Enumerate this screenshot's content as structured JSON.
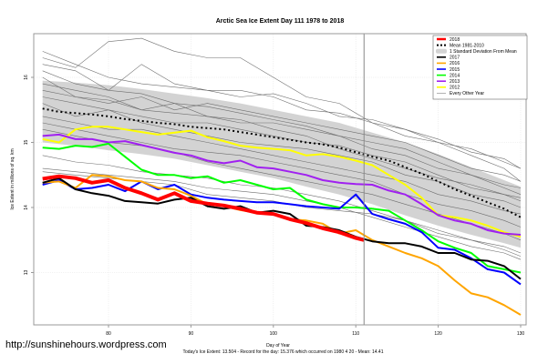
{
  "chart_data": {
    "type": "line",
    "title": "Arctic Sea Ice Extent Day 111 1978 to 2018",
    "xlabel": "Day of Year",
    "ylabel": "Ice Extent in millions of sq. km",
    "xlim": [
      71,
      131.5
    ],
    "ylim": [
      12.2,
      16.7
    ],
    "x_ticks": [
      80,
      90,
      100,
      110,
      120,
      130
    ],
    "y_ticks": [
      13,
      14,
      15,
      16
    ],
    "grid": true,
    "current_day_marker": 111,
    "legend_position": "top-right",
    "legend": [
      {
        "label": "2018",
        "color": "#ff0000",
        "style": "thick"
      },
      {
        "label": "Mean 1981-2010",
        "color": "#000000",
        "style": "dotted"
      },
      {
        "label": "1 Standard Deviation From Mean",
        "color": "#d3d3d3",
        "style": "band"
      },
      {
        "label": "2017",
        "color": "#000000",
        "style": "solid"
      },
      {
        "label": "2016",
        "color": "#ffa500",
        "style": "solid"
      },
      {
        "label": "2015",
        "color": "#0000ff",
        "style": "solid"
      },
      {
        "label": "2014",
        "color": "#00ff00",
        "style": "solid"
      },
      {
        "label": "2013",
        "color": "#a020f0",
        "style": "solid"
      },
      {
        "label": "2012",
        "color": "#ffff00",
        "style": "solid"
      },
      {
        "label": "Every Other Year",
        "color": "#808080",
        "style": "thin"
      }
    ],
    "band": {
      "name": "1 Standard Deviation From Mean",
      "x": [
        72,
        76,
        80,
        84,
        88,
        92,
        96,
        100,
        104,
        108,
        112,
        116,
        120,
        124,
        128,
        130
      ],
      "upper": [
        15.95,
        15.92,
        15.88,
        15.82,
        15.75,
        15.68,
        15.6,
        15.5,
        15.4,
        15.3,
        15.15,
        15.0,
        14.82,
        14.62,
        14.42,
        14.32
      ],
      "lower": [
        15.0,
        14.95,
        14.88,
        14.82,
        14.75,
        14.65,
        14.55,
        14.45,
        14.32,
        14.2,
        14.05,
        13.88,
        13.72,
        13.58,
        13.45,
        13.38
      ]
    },
    "mean": {
      "name": "Mean 1981-2010",
      "x": [
        72,
        74,
        76,
        78,
        80,
        82,
        84,
        86,
        88,
        90,
        92,
        94,
        96,
        98,
        100,
        102,
        104,
        106,
        108,
        110,
        112,
        114,
        116,
        118,
        120,
        122,
        124,
        126,
        128,
        130
      ],
      "values": [
        15.52,
        15.47,
        15.45,
        15.43,
        15.4,
        15.36,
        15.33,
        15.3,
        15.28,
        15.24,
        15.22,
        15.2,
        15.16,
        15.12,
        15.08,
        15.04,
        15.0,
        14.97,
        14.92,
        14.85,
        14.78,
        14.72,
        14.62,
        14.52,
        14.4,
        14.28,
        14.18,
        14.08,
        13.98,
        13.85
      ]
    },
    "series": [
      {
        "name": "2018",
        "color": "#ff0000",
        "x": [
          72,
          74,
          76,
          78,
          80,
          82,
          84,
          86,
          88,
          90,
          92,
          94,
          96,
          98,
          100,
          102,
          104,
          106,
          108,
          110,
          111
        ],
        "values": [
          14.44,
          14.48,
          14.45,
          14.38,
          14.42,
          14.3,
          14.22,
          14.12,
          14.22,
          14.1,
          14.06,
          14.03,
          13.98,
          13.92,
          13.9,
          13.82,
          13.76,
          13.68,
          13.62,
          13.53,
          13.5
        ]
      },
      {
        "name": "2017",
        "color": "#000000",
        "x": [
          72,
          74,
          76,
          78,
          80,
          82,
          84,
          86,
          88,
          90,
          92,
          94,
          96,
          98,
          100,
          102,
          104,
          106,
          108,
          110,
          112,
          114,
          116,
          118,
          120,
          122,
          124,
          126,
          128,
          130
        ],
        "values": [
          14.38,
          14.45,
          14.28,
          14.22,
          14.18,
          14.1,
          14.08,
          14.06,
          14.12,
          14.15,
          14.02,
          13.98,
          14.02,
          13.92,
          13.95,
          13.9,
          13.72,
          13.7,
          13.65,
          13.55,
          13.48,
          13.45,
          13.45,
          13.4,
          13.3,
          13.3,
          13.2,
          13.18,
          13.1,
          12.9
        ]
      },
      {
        "name": "2016",
        "color": "#ffa500",
        "x": [
          72,
          74,
          76,
          78,
          80,
          82,
          84,
          86,
          88,
          90,
          92,
          94,
          96,
          98,
          100,
          102,
          104,
          106,
          108,
          110,
          112,
          114,
          116,
          118,
          120,
          122,
          124,
          126,
          128,
          130
        ],
        "values": [
          14.38,
          14.4,
          14.3,
          14.5,
          14.48,
          14.42,
          14.4,
          14.3,
          14.28,
          14.18,
          14.05,
          14.02,
          13.96,
          13.92,
          13.9,
          13.82,
          13.8,
          13.75,
          13.6,
          13.65,
          13.5,
          13.4,
          13.3,
          13.22,
          13.1,
          12.88,
          12.68,
          12.62,
          12.5,
          12.35
        ]
      },
      {
        "name": "2015",
        "color": "#0000ff",
        "x": [
          72,
          74,
          76,
          78,
          80,
          82,
          84,
          86,
          88,
          90,
          92,
          94,
          96,
          98,
          100,
          102,
          104,
          106,
          108,
          110,
          112,
          114,
          116,
          118,
          120,
          122,
          124,
          126,
          128,
          130
        ],
        "values": [
          14.35,
          14.42,
          14.28,
          14.3,
          14.35,
          14.25,
          14.4,
          14.28,
          14.35,
          14.2,
          14.15,
          14.12,
          14.1,
          14.08,
          14.08,
          14.05,
          14.02,
          14.0,
          13.98,
          14.2,
          13.9,
          13.82,
          13.75,
          13.62,
          13.38,
          13.35,
          13.22,
          13.05,
          13.0,
          12.82
        ]
      },
      {
        "name": "2014",
        "color": "#00ff00",
        "x": [
          72,
          74,
          76,
          78,
          80,
          82,
          84,
          86,
          88,
          90,
          92,
          94,
          96,
          98,
          100,
          102,
          104,
          106,
          108,
          110,
          112,
          114,
          116,
          118,
          120,
          122,
          124,
          126,
          128,
          130
        ],
        "values": [
          14.92,
          14.9,
          14.95,
          14.93,
          14.98,
          14.78,
          14.58,
          14.5,
          14.5,
          14.45,
          14.48,
          14.38,
          14.42,
          14.35,
          14.28,
          14.3,
          14.12,
          14.05,
          14.0,
          14.0,
          13.98,
          13.95,
          13.8,
          13.65,
          13.48,
          13.38,
          13.3,
          13.1,
          13.05,
          13.0
        ]
      },
      {
        "name": "2013",
        "color": "#a020f0",
        "x": [
          72,
          74,
          76,
          78,
          80,
          82,
          84,
          86,
          88,
          90,
          92,
          94,
          96,
          98,
          100,
          102,
          104,
          106,
          108,
          110,
          112,
          114,
          116,
          118,
          120,
          122,
          124,
          126,
          128,
          130
        ],
        "values": [
          15.1,
          15.12,
          15.05,
          15.05,
          15.0,
          15.02,
          14.96,
          14.9,
          14.84,
          14.8,
          14.72,
          14.68,
          14.72,
          14.62,
          14.6,
          14.55,
          14.5,
          14.42,
          14.38,
          14.36,
          14.35,
          14.26,
          14.2,
          14.05,
          13.88,
          13.8,
          13.75,
          13.65,
          13.6,
          13.58
        ]
      },
      {
        "name": "2012",
        "color": "#ffff00",
        "x": [
          72,
          74,
          76,
          78,
          80,
          82,
          84,
          86,
          88,
          90,
          92,
          94,
          96,
          98,
          100,
          102,
          104,
          106,
          108,
          110,
          112,
          114,
          116,
          118,
          120,
          122,
          124,
          126,
          128,
          130
        ],
        "values": [
          15.05,
          15.0,
          15.2,
          15.24,
          15.24,
          15.2,
          15.16,
          15.12,
          15.15,
          15.18,
          15.08,
          15.02,
          14.95,
          14.92,
          14.9,
          14.88,
          14.8,
          14.82,
          14.78,
          14.72,
          14.65,
          14.5,
          14.35,
          14.15,
          13.88,
          13.85,
          13.8,
          13.72,
          13.62,
          13.55
        ]
      }
    ],
    "other_years": {
      "name": "Every Other Year",
      "color": "#808080",
      "x": [
        72,
        76,
        80,
        84,
        88,
        92,
        96,
        100,
        104,
        108,
        112,
        116,
        120,
        124,
        128,
        130
      ],
      "lines": [
        [
          16.3,
          16.15,
          16.55,
          16.6,
          16.4,
          16.3,
          16.3,
          16.0,
          15.7,
          15.6,
          15.3,
          15.1,
          15.0,
          14.8,
          14.6,
          14.4
        ],
        [
          16.4,
          16.2,
          16.0,
          15.9,
          15.85,
          15.8,
          15.8,
          15.7,
          15.5,
          15.45,
          15.3,
          15.2,
          15.0,
          14.9,
          14.7,
          14.6
        ],
        [
          16.2,
          16.1,
          15.8,
          16.2,
          15.9,
          15.8,
          15.7,
          15.75,
          15.6,
          15.4,
          15.35,
          15.2,
          15.05,
          14.85,
          14.75,
          14.6
        ],
        [
          16.0,
          15.7,
          15.6,
          15.7,
          15.5,
          15.6,
          15.5,
          15.4,
          15.3,
          15.2,
          15.1,
          15.0,
          14.8,
          14.6,
          14.5,
          14.4
        ],
        [
          15.9,
          15.8,
          15.7,
          15.5,
          15.6,
          15.4,
          15.3,
          15.3,
          15.2,
          15.1,
          14.9,
          14.8,
          14.6,
          14.5,
          14.3,
          14.2
        ],
        [
          15.7,
          15.6,
          15.5,
          15.4,
          15.3,
          15.3,
          15.2,
          15.1,
          15.0,
          14.95,
          14.8,
          14.7,
          14.5,
          14.3,
          14.2,
          14.1
        ],
        [
          15.6,
          15.4,
          15.5,
          15.3,
          15.2,
          15.1,
          15.0,
          14.95,
          14.9,
          14.8,
          14.7,
          14.5,
          14.4,
          14.2,
          14.1,
          14.0
        ],
        [
          15.4,
          15.3,
          15.2,
          15.2,
          15.1,
          15.0,
          14.9,
          14.8,
          14.7,
          14.6,
          14.5,
          14.4,
          14.2,
          14.1,
          13.95,
          13.9
        ],
        [
          15.3,
          15.2,
          15.1,
          15.0,
          14.9,
          14.85,
          14.8,
          14.7,
          14.6,
          14.5,
          14.4,
          14.2,
          14.05,
          13.95,
          13.8,
          13.7
        ],
        [
          15.8,
          15.7,
          15.65,
          15.5,
          15.45,
          15.4,
          15.35,
          15.2,
          15.1,
          14.9,
          14.75,
          14.6,
          14.45,
          14.35,
          14.2,
          14.15
        ],
        [
          16.1,
          15.9,
          15.8,
          15.75,
          15.6,
          15.55,
          15.45,
          15.35,
          15.25,
          15.1,
          15.0,
          14.9,
          14.7,
          14.5,
          14.35,
          14.3
        ],
        [
          14.55,
          14.5,
          14.45,
          14.4,
          14.35,
          14.2,
          14.15,
          14.1,
          14.0,
          13.95,
          13.9,
          13.8,
          13.6,
          13.5,
          13.4,
          13.3
        ],
        [
          14.6,
          14.55,
          14.5,
          14.45,
          14.4,
          14.3,
          14.25,
          14.2,
          14.1,
          14.0,
          13.85,
          13.7,
          13.55,
          13.4,
          13.3,
          13.2
        ],
        [
          14.8,
          14.7,
          14.65,
          14.55,
          14.5,
          14.45,
          14.35,
          14.3,
          14.2,
          14.1,
          13.95,
          13.8,
          13.65,
          13.5,
          13.35,
          13.25
        ],
        [
          15.2,
          15.1,
          15.0,
          14.95,
          14.85,
          14.7,
          14.6,
          14.5,
          14.4,
          14.3,
          14.2,
          14.05,
          13.9,
          13.75,
          13.6,
          13.5
        ]
      ]
    }
  },
  "footer": {
    "url": "http://sunshinehours.wordpress.com",
    "note": "Today's Ice Extent: 13.504  - Record for the day: 15.376 which occurred on 1980 4 20  - Mean: 14.41"
  }
}
